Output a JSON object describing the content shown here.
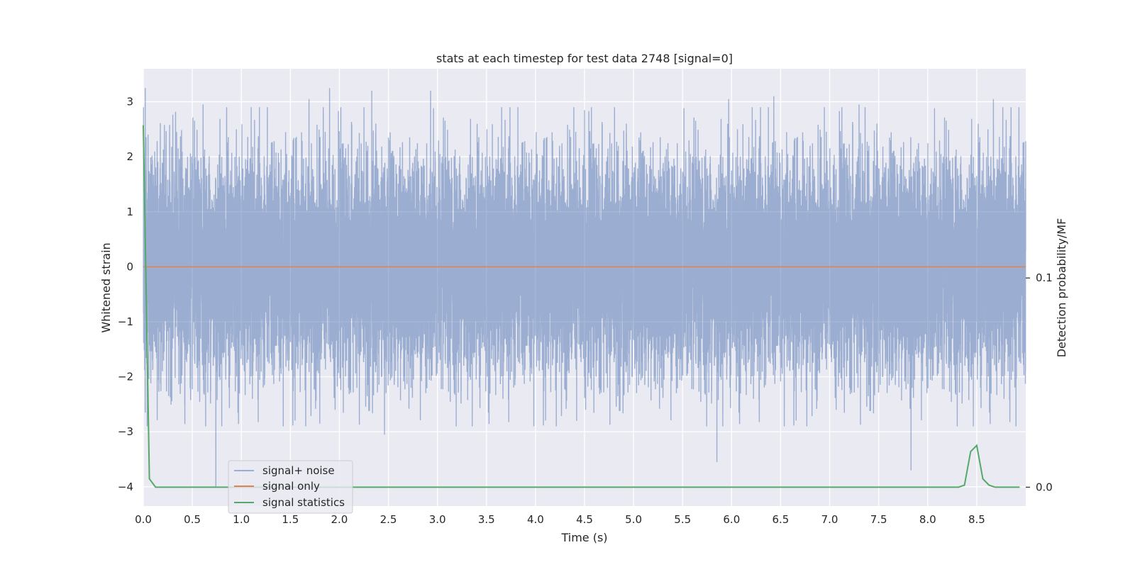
{
  "chart_data": {
    "type": "line",
    "title": "stats at each timestep for test data 2748 [signal=0]",
    "xlabel": "Time (s)",
    "ylabel": "Whitened strain",
    "y2label": "Detection probability/MF",
    "xlim": [
      0.0,
      9.0
    ],
    "ylim": [
      -4.35,
      3.6
    ],
    "y2lim": [
      -0.009,
      0.2
    ],
    "x_ticks": [
      "0.0",
      "0.5",
      "1.0",
      "1.5",
      "2.0",
      "2.5",
      "3.0",
      "3.5",
      "4.0",
      "4.5",
      "5.0",
      "5.5",
      "6.0",
      "6.5",
      "7.0",
      "7.5",
      "8.0",
      "8.5"
    ],
    "y_ticks": [
      "3",
      "2",
      "1",
      "0",
      "−1",
      "−2",
      "−3",
      "−4"
    ],
    "y2_ticks": [
      "0.1",
      "0.0"
    ],
    "grid": true,
    "legend_position": "lower-left",
    "series": [
      {
        "name": "signal+ noise",
        "color": "#4c72b0",
        "axis": "left",
        "sample_rate_hz": 2048,
        "duration_s": 9.0,
        "std": 0.95,
        "spikes": [
          {
            "x": 0.02,
            "y": 3.25
          },
          {
            "x": 0.04,
            "y": -2.9
          },
          {
            "x": 0.61,
            "y": 2.95
          },
          {
            "x": 0.74,
            "y": -4.0
          },
          {
            "x": 0.85,
            "y": 2.9
          },
          {
            "x": 1.9,
            "y": 3.25
          },
          {
            "x": 1.8,
            "y": -2.85
          },
          {
            "x": 2.33,
            "y": 3.2
          },
          {
            "x": 2.46,
            "y": -3.05
          },
          {
            "x": 2.93,
            "y": 3.2
          },
          {
            "x": 4.5,
            "y": 2.85
          },
          {
            "x": 4.42,
            "y": -2.8
          },
          {
            "x": 5.85,
            "y": -3.55
          },
          {
            "x": 5.97,
            "y": 3.05
          },
          {
            "x": 6.43,
            "y": 3.1
          },
          {
            "x": 7.83,
            "y": -3.7
          },
          {
            "x": 8.67,
            "y": 3.05
          },
          {
            "x": 8.9,
            "y": -2.9
          },
          {
            "x": 1.69,
            "y": 3.05
          },
          {
            "x": 7.3,
            "y": 2.95
          }
        ]
      },
      {
        "name": "signal only",
        "color": "#dd8452",
        "axis": "left",
        "x": [
          0.0,
          9.0
        ],
        "y": [
          0.0,
          0.0
        ]
      },
      {
        "name": "signal statistics",
        "color": "#55a868",
        "axis": "right",
        "x": [
          0.0,
          0.0625,
          0.125,
          0.1875,
          0.25,
          0.5,
          1.0,
          2.0,
          3.0,
          4.0,
          5.0,
          6.0,
          7.0,
          8.0,
          8.3125,
          8.375,
          8.4375,
          8.5,
          8.5625,
          8.625,
          8.6875,
          8.75,
          8.8125,
          8.875,
          8.9375
        ],
        "y": [
          0.173,
          0.004,
          0.0,
          0.0,
          0.0,
          0.0,
          0.0,
          0.0,
          0.0,
          0.0,
          0.0,
          0.0,
          0.0,
          0.0,
          0.0,
          0.001,
          0.017,
          0.02,
          0.004,
          0.001,
          0.0,
          0.0,
          0.0,
          0.0,
          0.0
        ]
      }
    ]
  }
}
